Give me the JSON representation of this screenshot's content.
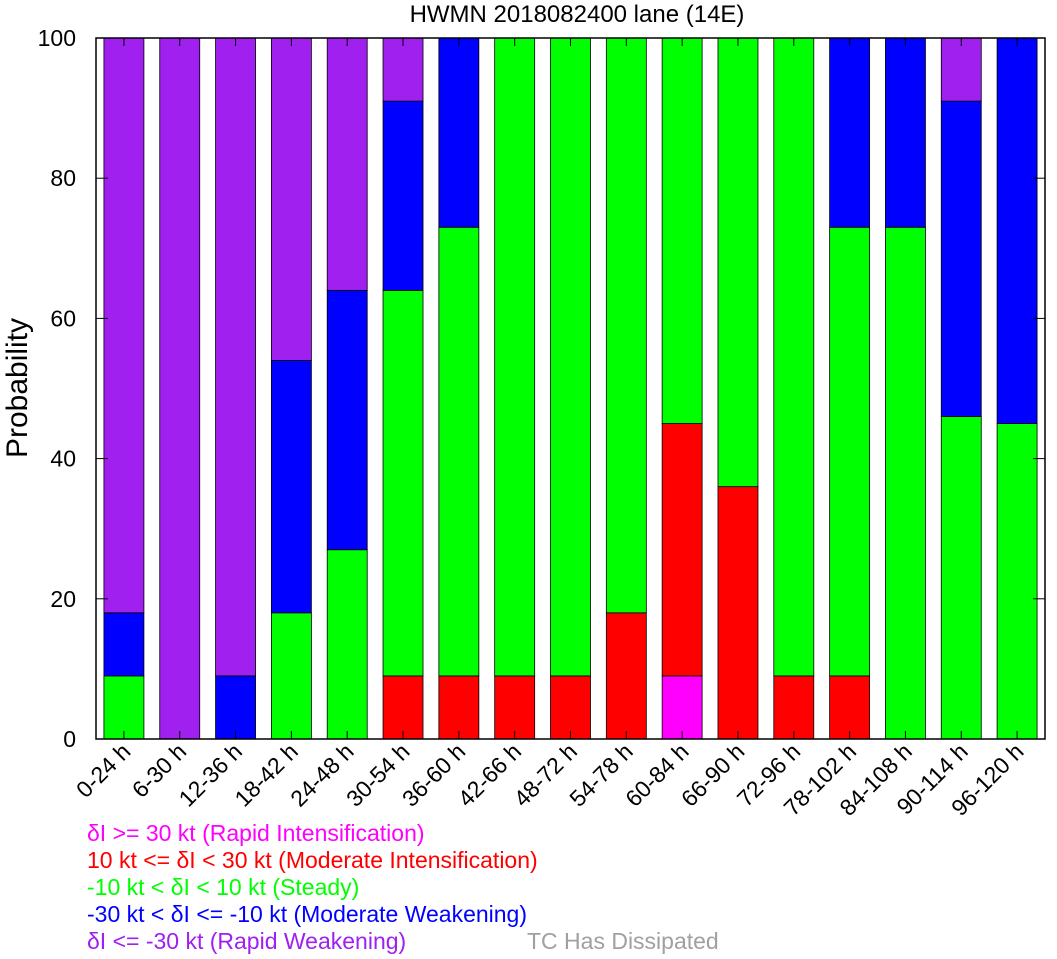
{
  "chart_data": {
    "type": "bar",
    "stacked": true,
    "title": "HWMN 2018082400 lane (14E)",
    "xlabel": "",
    "ylabel": "Probability",
    "ylim": [
      0,
      100
    ],
    "yticks": [
      0,
      20,
      40,
      60,
      80,
      100
    ],
    "categories": [
      "0-24 h",
      "6-30 h",
      "12-36 h",
      "18-42 h",
      "24-48 h",
      "30-54 h",
      "36-60 h",
      "42-66 h",
      "48-72 h",
      "54-78 h",
      "60-84 h",
      "66-90 h",
      "72-96 h",
      "78-102 h",
      "84-108 h",
      "90-114 h",
      "96-120 h"
    ],
    "series": [
      {
        "name": "δI >= 30 kt (Rapid Intensification)",
        "color": "#ff00ff",
        "values": [
          0,
          0,
          0,
          0,
          0,
          0,
          0,
          0,
          0,
          0,
          9,
          0,
          0,
          0,
          0,
          0,
          0
        ]
      },
      {
        "name": "10 kt <= δI < 30 kt (Moderate Intensification)",
        "color": "#ff0000",
        "values": [
          0,
          0,
          0,
          0,
          0,
          9,
          9,
          9,
          9,
          18,
          36,
          36,
          9,
          9,
          0,
          0,
          0
        ]
      },
      {
        "name": "-10 kt < δI < 10 kt (Steady)",
        "color": "#00ff00",
        "values": [
          9,
          0,
          0,
          18,
          27,
          55,
          64,
          91,
          91,
          82,
          55,
          64,
          91,
          64,
          73,
          46,
          45
        ]
      },
      {
        "name": "-30 kt < δI <= -10 kt (Moderate Weakening)",
        "color": "#0000ff",
        "values": [
          9,
          0,
          9,
          36,
          37,
          27,
          27,
          0,
          0,
          0,
          0,
          0,
          0,
          27,
          27,
          45,
          55
        ]
      },
      {
        "name": "δI <= -30 kt (Rapid Weakening)",
        "color": "#a020f0",
        "values": [
          82,
          100,
          91,
          46,
          36,
          9,
          0,
          0,
          0,
          0,
          0,
          0,
          0,
          0,
          0,
          9,
          0
        ]
      }
    ],
    "dissipated_label": "TC Has Dissipated",
    "dissipated_color": "#a0a0a0",
    "grid": false
  }
}
